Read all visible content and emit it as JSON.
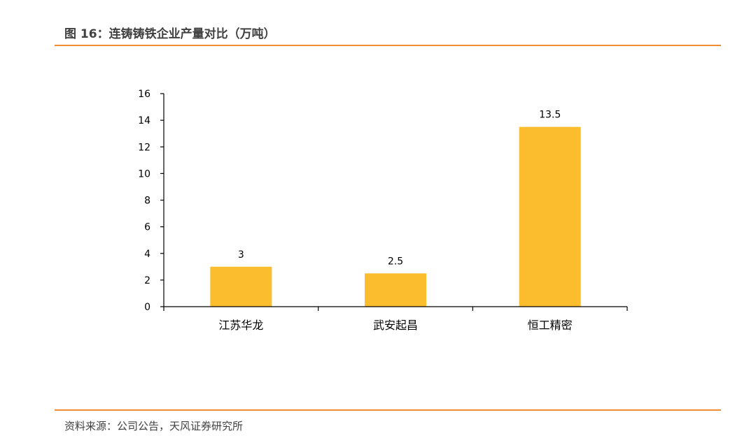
{
  "figure": {
    "title": "图 16：连铸铸铁企业产量对比（万吨）",
    "source": "资料来源：公司公告，天风证券研究所"
  },
  "colors": {
    "accent_rule": "#f08c32",
    "bar": "#fbbd2e",
    "axis": "#000000"
  },
  "chart_data": {
    "type": "bar",
    "title": "",
    "xlabel": "",
    "ylabel": "",
    "categories": [
      "江苏华龙",
      "武安起昌",
      "恒工精密"
    ],
    "values": [
      3,
      2.5,
      13.5
    ],
    "data_labels": [
      "3",
      "2.5",
      "13.5"
    ],
    "ylim": [
      0,
      16
    ],
    "yticks": [
      0,
      2,
      4,
      6,
      8,
      10,
      12,
      14,
      16
    ],
    "grid": false,
    "legend": "none"
  }
}
